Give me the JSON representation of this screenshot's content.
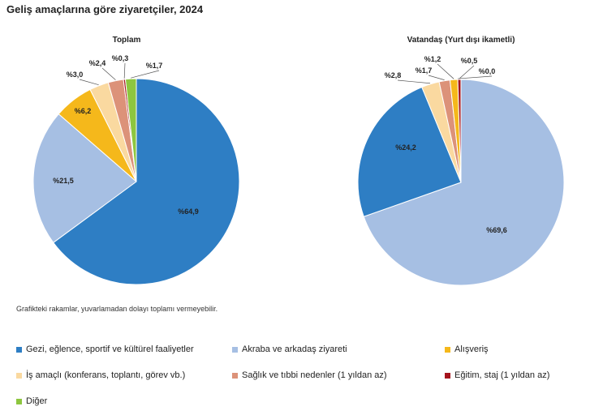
{
  "page": {
    "title": "Geliş amaçlarına göre ziyaretçiler, 2024",
    "footnote": "Grafikteki rakamlar, yuvarlamadan dolayı toplamı vermeyebilir."
  },
  "legend": [
    {
      "label": "Gezi, eğlence, sportif ve kültürel faaliyetler",
      "color": "#2e7ec4"
    },
    {
      "label": "Akraba ve arkadaş ziyareti",
      "color": "#a6bfe3"
    },
    {
      "label": "Alışveriş",
      "color": "#f5b81b"
    },
    {
      "label": "İş amaçlı (konferans, toplantı, görev vb.)",
      "color": "#fad9a0"
    },
    {
      "label": "Sağlık ve tıbbi nedenler (1 yıldan az)",
      "color": "#dc9279"
    },
    {
      "label": "Eğitim, staj (1 yıldan az)",
      "color": "#a5141d"
    },
    {
      "label": "Diğer",
      "color": "#8dc63f"
    }
  ],
  "chart_data": [
    {
      "type": "pie",
      "title": "Toplam",
      "categories": [
        "Gezi, eğlence, sportif ve kültürel faaliyetler",
        "Akraba ve arkadaş ziyareti",
        "Alışveriş",
        "İş amaçlı (konferans, toplantı, görev vb.)",
        "Sağlık ve tıbbi nedenler (1 yıldan az)",
        "Eğitim, staj (1 yıldan az)",
        "Diğer"
      ],
      "values": [
        64.9,
        21.5,
        6.2,
        3.0,
        2.4,
        0.3,
        1.7
      ],
      "labels": [
        "%64,9",
        "%21,5",
        "%6,2",
        "%3,0",
        "%2,4",
        "%0,3",
        "%1,7"
      ]
    },
    {
      "type": "pie",
      "title": "Vatandaş (Yurt dışı ikametli)",
      "categories": [
        "Gezi, eğlence, sportif ve kültürel faaliyetler",
        "Akraba ve arkadaş ziyareti",
        "Alışveriş",
        "İş amaçlı (konferans, toplantı, görev vb.)",
        "Sağlık ve tıbbi nedenler (1 yıldan az)",
        "Eğitim, staj (1 yıldan az)",
        "Diğer"
      ],
      "values": [
        24.2,
        69.6,
        1.2,
        2.8,
        1.7,
        0.5,
        0.0
      ],
      "labels": [
        "%24,2",
        "%69,6",
        "%1,2",
        "%2,8",
        "%1,7",
        "%0,5",
        "%0,0"
      ]
    }
  ]
}
